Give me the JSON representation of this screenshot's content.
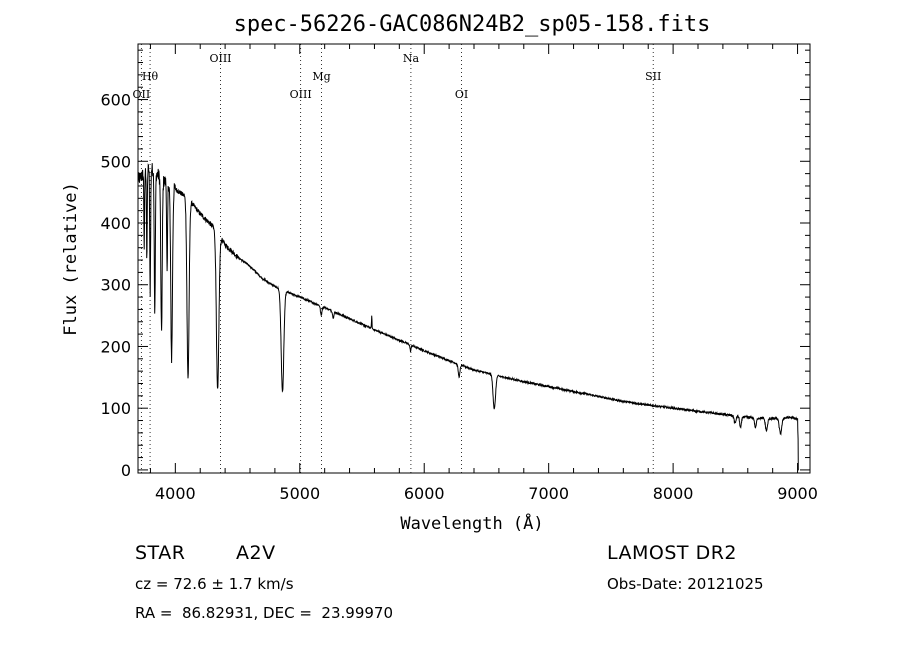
{
  "chart_data": {
    "type": "line",
    "title": "spec-56226-GAC086N24B2_sp05-158.fits",
    "xlabel": "Wavelength (Å)",
    "ylabel": "Flux (relative)",
    "xlim": [
      3700,
      9100
    ],
    "ylim": [
      -5,
      690
    ],
    "xticks": [
      4000,
      5000,
      6000,
      7000,
      8000,
      9000
    ],
    "xtick_labels": [
      "4000",
      "5000",
      "6000",
      "7000",
      "8000",
      "9000"
    ],
    "yticks": [
      0,
      100,
      200,
      300,
      400,
      500,
      600
    ],
    "ytick_labels": [
      "0",
      "100",
      "200",
      "300",
      "400",
      "500",
      "600"
    ],
    "grid": false,
    "line_color": "#000000",
    "lines": [
      {
        "label": "OII",
        "x": 3727,
        "row": 3
      },
      {
        "label": "Hθ",
        "x": 3797,
        "row": 2
      },
      {
        "label": "OIII",
        "x": 4363,
        "row": 1
      },
      {
        "label": "OIII",
        "x": 5007,
        "row": 3
      },
      {
        "label": "Mg",
        "x": 5175,
        "row": 2
      },
      {
        "label": "Na",
        "x": 5893,
        "row": 1
      },
      {
        "label": "OI",
        "x": 6300,
        "row": 3
      },
      {
        "label": "SII",
        "x": 7840,
        "row": 2
      }
    ],
    "series": [
      {
        "continuum": [
          [
            3700,
            470
          ],
          [
            3750,
            480
          ],
          [
            3800,
            490
          ],
          [
            3900,
            470
          ],
          [
            4000,
            455
          ],
          [
            4100,
            440
          ],
          [
            4200,
            415
          ],
          [
            4300,
            395
          ],
          [
            4400,
            365
          ],
          [
            4500,
            345
          ],
          [
            4600,
            330
          ],
          [
            4700,
            310
          ],
          [
            4800,
            297
          ],
          [
            4900,
            288
          ],
          [
            5000,
            280
          ],
          [
            5200,
            263
          ],
          [
            5400,
            245
          ],
          [
            5600,
            227
          ],
          [
            5800,
            210
          ],
          [
            6000,
            193
          ],
          [
            6200,
            177
          ],
          [
            6400,
            162
          ],
          [
            6600,
            152
          ],
          [
            6800,
            143
          ],
          [
            7000,
            135
          ],
          [
            7200,
            127
          ],
          [
            7400,
            119
          ],
          [
            7600,
            111
          ],
          [
            7800,
            105
          ],
          [
            8000,
            100
          ],
          [
            8200,
            95
          ],
          [
            8400,
            90
          ],
          [
            8600,
            85
          ],
          [
            8800,
            83
          ],
          [
            8950,
            85
          ],
          [
            9000,
            82
          ],
          [
            9010,
            0
          ]
        ],
        "absorption_lines": [
          {
            "x": 3750,
            "depth": 120,
            "width": 4
          },
          {
            "x": 3771,
            "depth": 150,
            "width": 4
          },
          {
            "x": 3798,
            "depth": 200,
            "width": 5
          },
          {
            "x": 3835,
            "depth": 230,
            "width": 6
          },
          {
            "x": 3889,
            "depth": 250,
            "width": 8
          },
          {
            "x": 3934,
            "depth": 150,
            "width": 5
          },
          {
            "x": 3970,
            "depth": 280,
            "width": 10
          },
          {
            "x": 4102,
            "depth": 290,
            "width": 12
          },
          {
            "x": 4340,
            "depth": 255,
            "width": 14
          },
          {
            "x": 4861,
            "depth": 165,
            "width": 15
          },
          {
            "x": 5172,
            "depth": 15,
            "width": 8
          },
          {
            "x": 5269,
            "depth": 10,
            "width": 8
          },
          {
            "x": 5890,
            "depth": 10,
            "width": 6
          },
          {
            "x": 6280,
            "depth": 20,
            "width": 10
          },
          {
            "x": 6563,
            "depth": 55,
            "width": 14
          },
          {
            "x": 8498,
            "depth": 12,
            "width": 10
          },
          {
            "x": 8542,
            "depth": 18,
            "width": 10
          },
          {
            "x": 8662,
            "depth": 16,
            "width": 10
          },
          {
            "x": 8750,
            "depth": 20,
            "width": 12
          },
          {
            "x": 8863,
            "depth": 25,
            "width": 14
          }
        ],
        "emission_spikes": [
          {
            "x": 5578,
            "height": 20,
            "width": 3
          }
        ]
      }
    ]
  },
  "info": {
    "object_class": "STAR",
    "subclass": "A2V",
    "survey": "LAMOST DR2",
    "redshift_text": "cz = 72.6 ± 1.7 km/s",
    "obs_date": "Obs-Date: 20121025",
    "coords": "RA =  86.82931, DEC =  23.99970"
  }
}
